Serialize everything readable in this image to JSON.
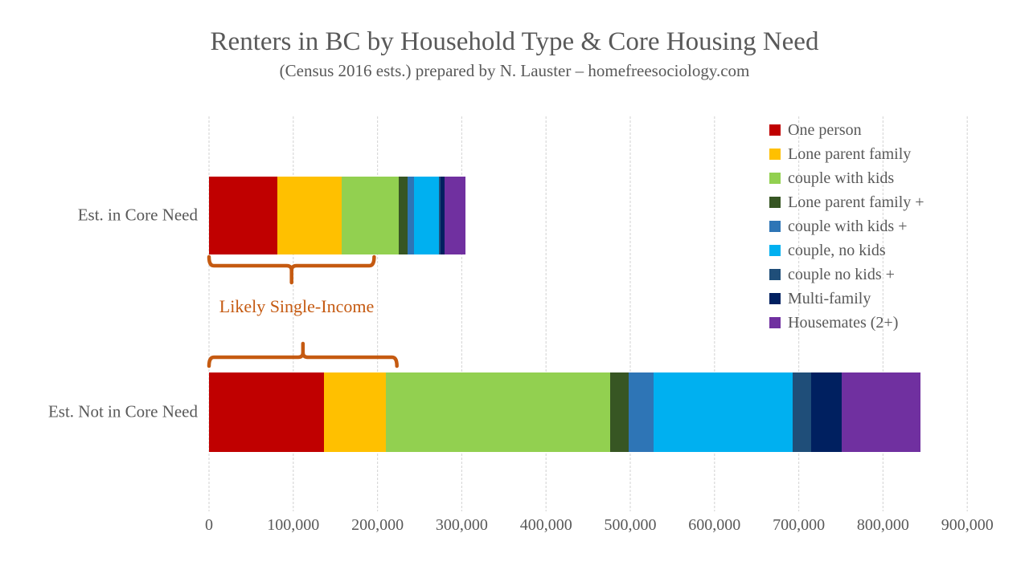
{
  "title": "Renters in BC by Household Type & Core Housing Need",
  "subtitle": "(Census 2016 ests.) prepared by N. Lauster – homefreesociology.com",
  "colors": {
    "background": "#FFFFFF",
    "text_gray": "#595959",
    "gridline": "#D9D9D9",
    "annotation_orange": "#C55A11"
  },
  "annotation": {
    "text": "Likely Single-Income",
    "color": "#C55A11",
    "spans": [
      {
        "category": "Est. in Core Need",
        "from": 0,
        "to": 196000
      },
      {
        "category": "Est. Not in Core Need",
        "from": 0,
        "to": 223000
      }
    ]
  },
  "chart_data": {
    "type": "bar",
    "orientation": "horizontal",
    "stacked": true,
    "grid": true,
    "legend_position": "upper-right",
    "title": "Renters in BC by Household Type & Core Housing Need",
    "subtitle": "(Census 2016 ests.) prepared by N. Lauster – homefreesociology.com",
    "categories": [
      "Est. in Core Need",
      "Est. Not in Core Need"
    ],
    "category_totals": [
      304000,
      845000
    ],
    "series": [
      {
        "name": "One person",
        "color": "#C00000",
        "values": [
          81000,
          136000
        ]
      },
      {
        "name": "Lone parent family",
        "color": "#FFC000",
        "values": [
          76000,
          74000
        ]
      },
      {
        "name": "couple with kids",
        "color": "#92D050",
        "values": [
          68000,
          266000
        ]
      },
      {
        "name": "Lone parent family +",
        "color": "#375623",
        "values": [
          11000,
          22000
        ]
      },
      {
        "name": "couple with kids +",
        "color": "#2E75B6",
        "values": [
          7500,
          30000
        ]
      },
      {
        "name": "couple, no kids",
        "color": "#00B0F0",
        "values": [
          29000,
          165000
        ]
      },
      {
        "name": "couple no kids +",
        "color": "#1F4E79",
        "values": [
          2500,
          22000
        ]
      },
      {
        "name": "Multi-family",
        "color": "#002060",
        "values": [
          5000,
          36000
        ]
      },
      {
        "name": "Housemates (2+)",
        "color": "#7030A0",
        "values": [
          24000,
          94000
        ]
      }
    ],
    "x_axis": {
      "range": [
        0,
        900000
      ],
      "tick_values": [
        0,
        100000,
        200000,
        300000,
        400000,
        500000,
        600000,
        700000,
        800000,
        900000
      ],
      "tick_labels": [
        "0",
        "100,000",
        "200,000",
        "300,000",
        "400,000",
        "500,000",
        "600,000",
        "700,000",
        "800,000",
        "900,000"
      ]
    }
  }
}
